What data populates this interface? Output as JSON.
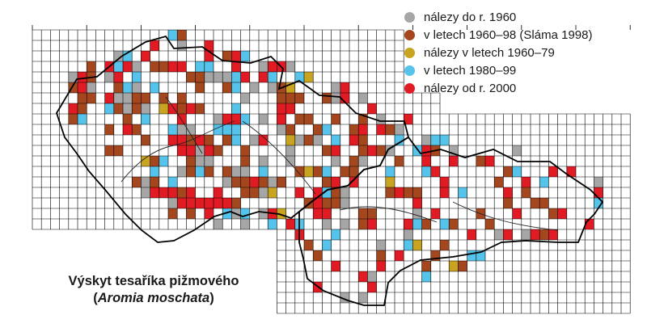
{
  "legend": [
    {
      "label": "nálezy do r. 1960",
      "color": "#a6a6a6"
    },
    {
      "label": "v letech 1960–98 (Sláma 1998)",
      "color": "#a4471f"
    },
    {
      "label": "nálezy v letech 1960–79",
      "color": "#c8a420"
    },
    {
      "label": "v letech 1980–99",
      "color": "#56c3ea"
    },
    {
      "label": "nálezy od r. 2000",
      "color": "#e01b23"
    }
  ],
  "caption": {
    "title": "Výskyt tesaříka pižmového",
    "open_paren": "(",
    "species": "Aromia moschata",
    "close_paren": ")"
  },
  "colors": {
    "grid": "#000000",
    "border": "#000000",
    "rivers": "#222222",
    "background": "#ffffff"
  }
}
